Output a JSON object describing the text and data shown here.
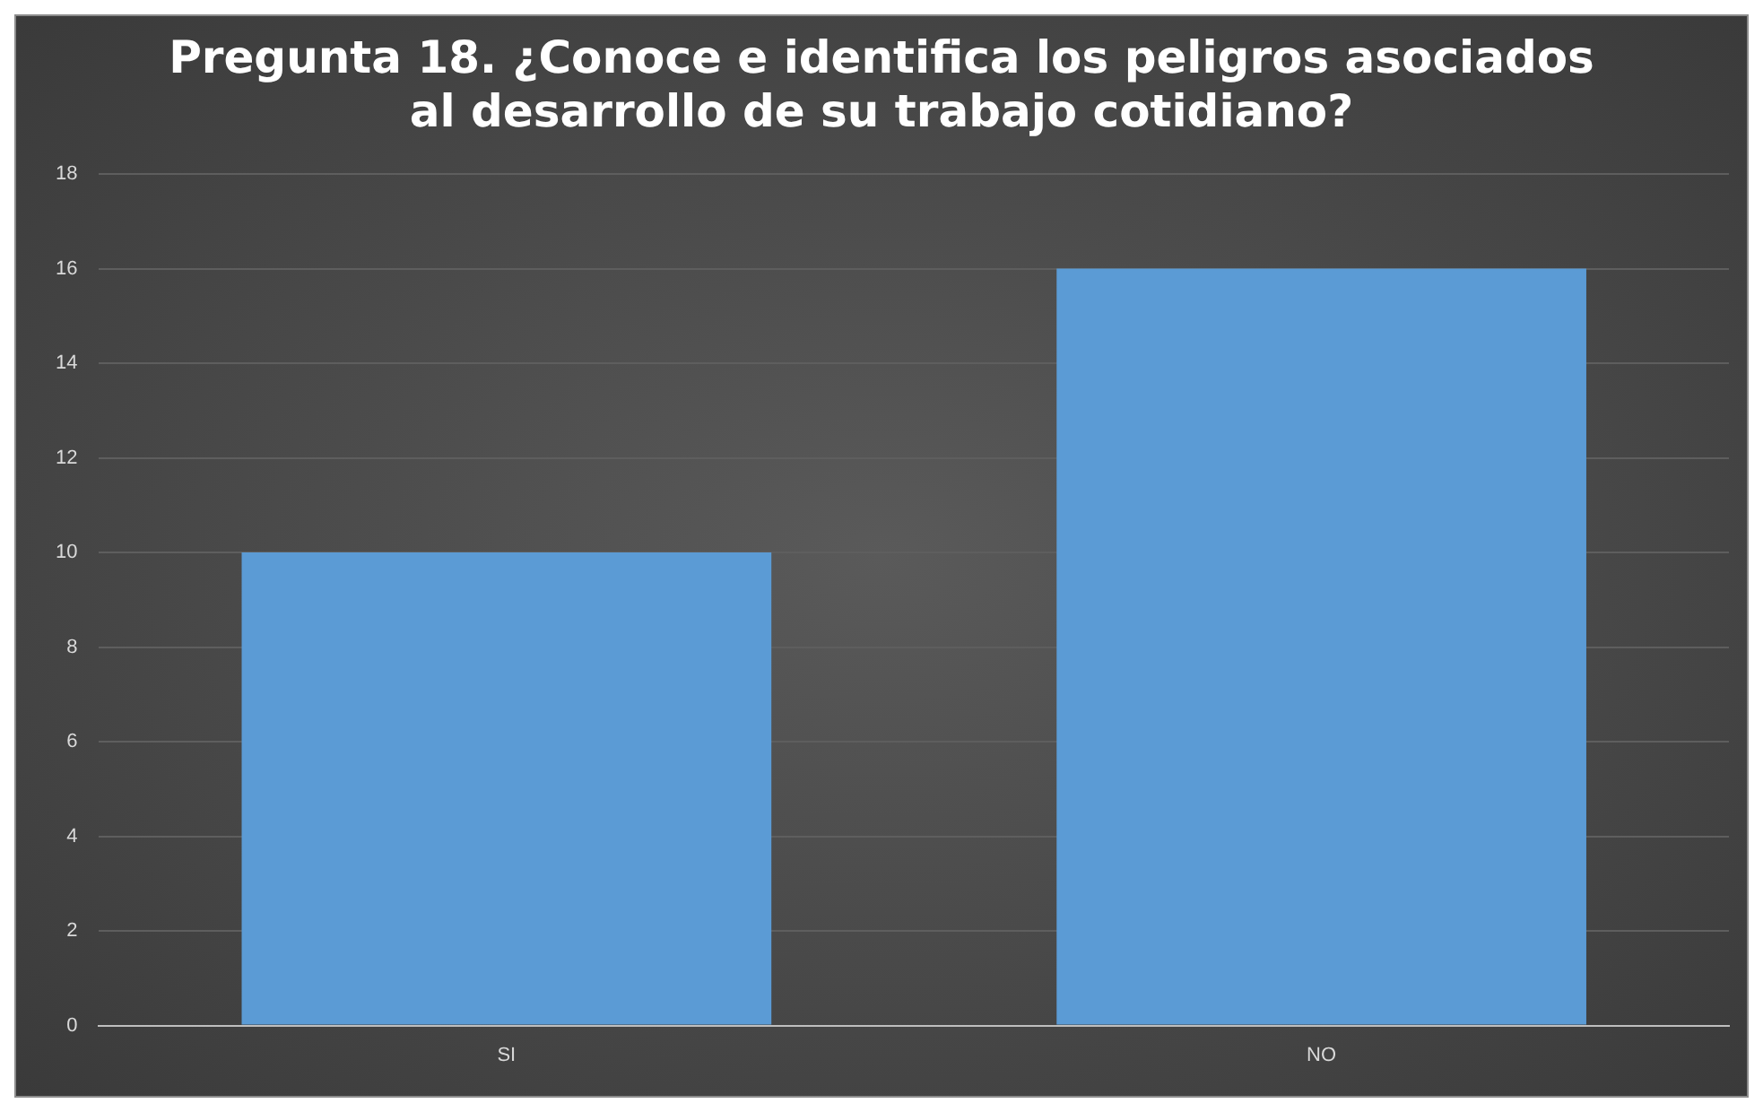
{
  "chart_data": {
    "type": "bar",
    "title": "Pregunta 18. ¿Conoce e identifica los peligros asociados al desarrollo de su trabajo cotidiano?",
    "categories": [
      "SI",
      "NO"
    ],
    "values": [
      10,
      16
    ],
    "color": "#5b9bd5",
    "ylim": [
      0,
      18
    ],
    "yticks": [
      0,
      2,
      4,
      6,
      8,
      10,
      12,
      14,
      16,
      18
    ],
    "grid": "y"
  }
}
